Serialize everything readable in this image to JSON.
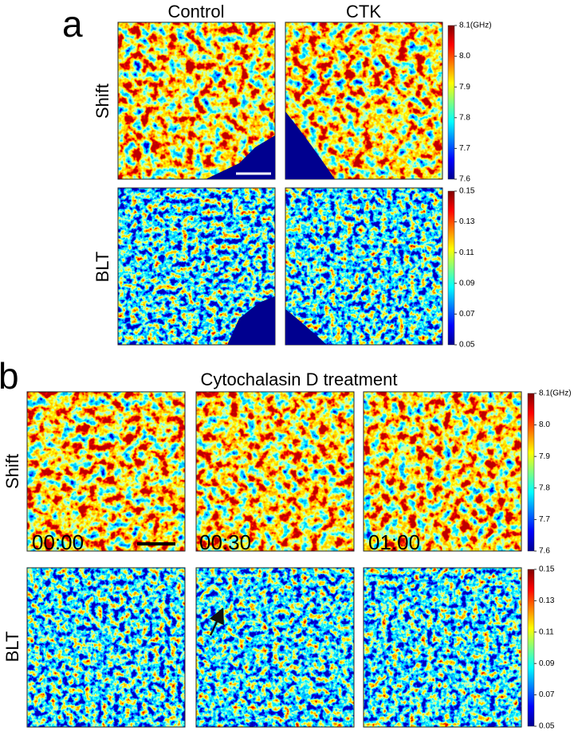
{
  "panel_a": {
    "label": "a",
    "columns": [
      "Control",
      "CTK"
    ],
    "rows": [
      "Shift",
      "BLT"
    ],
    "colorbars": [
      [
        "8.1(GHz)",
        "8.0",
        "7.9",
        "7.8",
        "7.7",
        "7.6"
      ],
      [
        "0.15",
        "0.13",
        "0.11",
        "0.09",
        "0.07",
        "0.05"
      ]
    ]
  },
  "panel_b": {
    "label": "b",
    "title": "Cytochalasin D treatment",
    "rows": [
      "Shift",
      "BLT"
    ],
    "timestamps": [
      "00:00",
      "00:30",
      "01:00"
    ],
    "colorbars": [
      [
        "8.1(GHz)",
        "8.0",
        "7.9",
        "7.8",
        "7.7",
        "7.6"
      ],
      [
        "0.15",
        "0.13",
        "0.11",
        "0.09",
        "0.07",
        "0.05"
      ]
    ]
  }
}
